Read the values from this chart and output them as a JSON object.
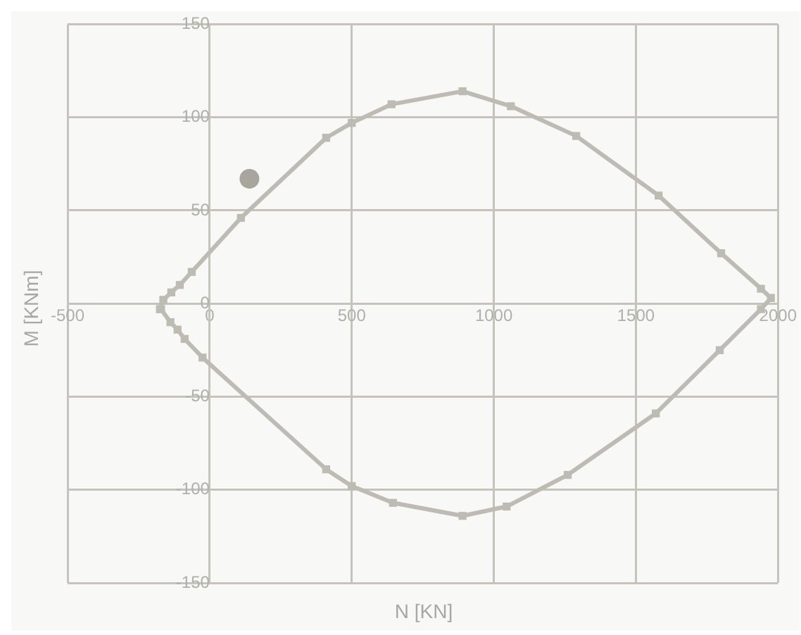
{
  "chart_data": {
    "type": "line",
    "xlabel": "N [KN]",
    "ylabel": "M [KNm]",
    "xlim": [
      -500,
      2000
    ],
    "xticks": [
      -500,
      0,
      500,
      1000,
      1500,
      2000
    ],
    "ylim": [
      -150,
      150
    ],
    "yticks": [
      -150,
      -100,
      -50,
      0,
      50,
      100,
      150
    ],
    "grid": true,
    "series": [
      {
        "color": "#bdbcb4",
        "marker": "square",
        "x": [
          -175,
          -163,
          -135,
          -105,
          -63,
          110,
          410,
          500,
          640,
          890,
          1060,
          1290,
          1580,
          1800,
          1940,
          1975,
          1940,
          1795,
          1570,
          1260,
          1045,
          890,
          645,
          500,
          410,
          -25,
          -88,
          -113,
          -138,
          -171
        ],
        "values": [
          -3,
          2,
          6,
          10,
          17,
          46,
          89,
          97,
          107,
          114,
          106,
          90,
          58,
          27,
          8,
          3,
          -3,
          -25,
          -59,
          -92,
          -109,
          -114,
          -107,
          -98,
          -89,
          -29,
          -19,
          -14,
          -10,
          -3
        ]
      },
      {
        "type": "scatter",
        "color": "#a8a59f",
        "marker": "circle",
        "x": [
          140
        ],
        "values": [
          67
        ]
      }
    ]
  }
}
